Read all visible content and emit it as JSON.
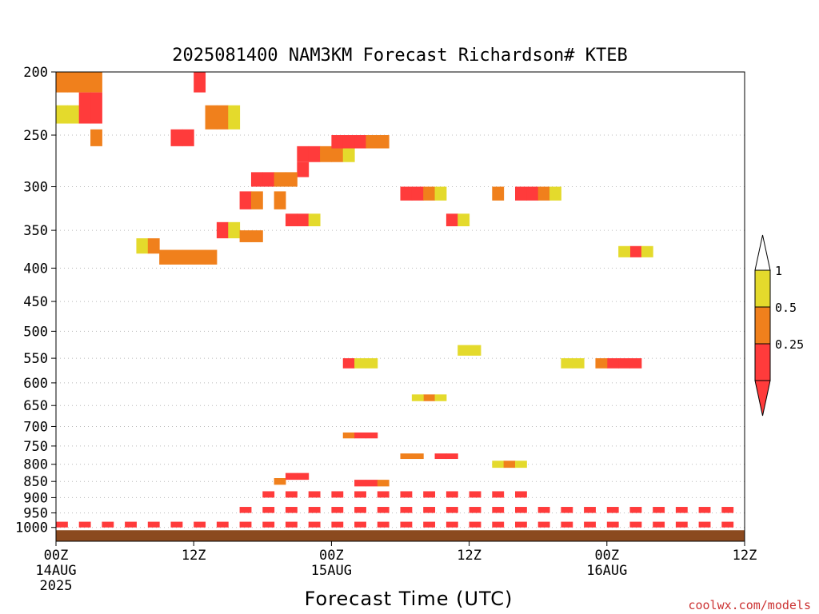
{
  "chart_data": {
    "type": "heatmap",
    "title": "2025081400 NAM3KM Forecast Richardson# KTEB",
    "xlabel": "Forecast Time (UTC)",
    "ylabel": "",
    "x_unit": "forecast hour",
    "x_range": [
      0,
      60
    ],
    "x_ticks": [
      {
        "x": 0,
        "labels": [
          "00Z",
          "14AUG",
          "2025"
        ]
      },
      {
        "x": 12,
        "labels": [
          "12Z"
        ]
      },
      {
        "x": 24,
        "labels": [
          "00Z",
          "15AUG"
        ]
      },
      {
        "x": 36,
        "labels": [
          "12Z"
        ]
      },
      {
        "x": 48,
        "labels": [
          "00Z",
          "16AUG"
        ]
      },
      {
        "x": 60,
        "labels": [
          "12Z"
        ]
      }
    ],
    "y_log_scale": true,
    "y_range": [
      1050,
      200
    ],
    "y_ticks": [
      200,
      250,
      300,
      350,
      400,
      450,
      500,
      550,
      600,
      650,
      700,
      750,
      800,
      850,
      900,
      950,
      1000
    ],
    "y_grid": true,
    "legend": {
      "placement": "right",
      "bins": [
        {
          "label": "0.25",
          "color": "#ff3b3b"
        },
        {
          "label": "0.5",
          "color": "#f0801c"
        },
        {
          "label": "1",
          "color": "#e4da2c"
        }
      ],
      "labels": [
        "1",
        "0.5",
        "0.25"
      ]
    },
    "categories": [
      {
        "name": "lt025",
        "color": "#ff3b3b"
      },
      {
        "name": "025to05",
        "color": "#f0801c"
      },
      {
        "name": "05to1",
        "color": "#e4da2c"
      }
    ],
    "cells": [
      [
        0,
        200,
        215,
        1
      ],
      [
        1,
        200,
        215,
        1
      ],
      [
        2,
        200,
        215,
        1
      ],
      [
        3,
        200,
        215,
        1
      ],
      [
        0,
        225,
        240,
        2
      ],
      [
        1,
        225,
        240,
        2
      ],
      [
        2,
        215,
        240,
        0
      ],
      [
        3,
        215,
        240,
        0
      ],
      [
        3,
        245,
        260,
        1
      ],
      [
        10,
        245,
        260,
        0
      ],
      [
        11,
        245,
        260,
        0
      ],
      [
        13,
        225,
        245,
        1
      ],
      [
        14,
        225,
        245,
        1
      ],
      [
        12,
        200,
        215,
        0
      ],
      [
        15,
        225,
        245,
        2
      ],
      [
        21,
        260,
        275,
        0
      ],
      [
        21,
        275,
        290,
        0
      ],
      [
        22,
        260,
        275,
        0
      ],
      [
        23,
        260,
        275,
        1
      ],
      [
        24,
        260,
        275,
        1
      ],
      [
        25,
        260,
        275,
        2
      ],
      [
        24,
        250,
        262,
        0
      ],
      [
        25,
        250,
        262,
        0
      ],
      [
        26,
        250,
        262,
        0
      ],
      [
        27,
        250,
        262,
        1
      ],
      [
        28,
        250,
        262,
        1
      ],
      [
        17,
        285,
        300,
        0
      ],
      [
        18,
        285,
        300,
        0
      ],
      [
        19,
        285,
        300,
        1
      ],
      [
        20,
        285,
        300,
        1
      ],
      [
        16,
        305,
        325,
        0
      ],
      [
        17,
        305,
        325,
        1
      ],
      [
        19,
        305,
        325,
        1
      ],
      [
        20,
        330,
        345,
        0
      ],
      [
        21,
        330,
        345,
        0
      ],
      [
        22,
        330,
        345,
        2
      ],
      [
        7,
        360,
        380,
        2
      ],
      [
        8,
        360,
        380,
        1
      ],
      [
        9,
        375,
        395,
        1
      ],
      [
        10,
        375,
        395,
        1
      ],
      [
        11,
        375,
        395,
        1
      ],
      [
        12,
        375,
        395,
        1
      ],
      [
        13,
        375,
        395,
        1
      ],
      [
        14,
        340,
        360,
        0
      ],
      [
        15,
        340,
        360,
        2
      ],
      [
        16,
        350,
        365,
        1
      ],
      [
        17,
        350,
        365,
        1
      ],
      [
        30,
        300,
        315,
        0
      ],
      [
        31,
        300,
        315,
        0
      ],
      [
        32,
        300,
        315,
        1
      ],
      [
        33,
        300,
        315,
        2
      ],
      [
        34,
        330,
        345,
        0
      ],
      [
        35,
        330,
        345,
        2
      ],
      [
        38,
        300,
        315,
        1
      ],
      [
        40,
        300,
        315,
        0
      ],
      [
        41,
        300,
        315,
        0
      ],
      [
        42,
        300,
        315,
        1
      ],
      [
        43,
        300,
        315,
        2
      ],
      [
        50,
        370,
        385,
        0
      ],
      [
        49,
        370,
        385,
        2
      ],
      [
        51,
        370,
        385,
        2
      ],
      [
        25,
        550,
        570,
        0
      ],
      [
        26,
        550,
        570,
        2
      ],
      [
        27,
        550,
        570,
        2
      ],
      [
        48,
        550,
        570,
        0
      ],
      [
        49,
        550,
        570,
        0
      ],
      [
        50,
        550,
        570,
        0
      ],
      [
        47,
        550,
        570,
        1
      ],
      [
        45,
        550,
        570,
        2
      ],
      [
        44,
        550,
        570,
        2
      ],
      [
        35,
        525,
        545,
        2
      ],
      [
        36,
        525,
        545,
        2
      ],
      [
        32,
        625,
        640,
        1
      ],
      [
        31,
        625,
        640,
        2
      ],
      [
        33,
        625,
        640,
        2
      ],
      [
        25,
        715,
        730,
        1
      ],
      [
        26,
        715,
        730,
        0
      ],
      [
        27,
        715,
        730,
        0
      ],
      [
        30,
        770,
        785,
        1
      ],
      [
        31,
        770,
        785,
        1
      ],
      [
        33,
        770,
        785,
        0
      ],
      [
        34,
        770,
        785,
        0
      ],
      [
        38,
        790,
        810,
        2
      ],
      [
        39,
        790,
        810,
        1
      ],
      [
        40,
        790,
        810,
        2
      ],
      [
        19,
        840,
        860,
        1
      ],
      [
        20,
        825,
        845,
        0
      ],
      [
        21,
        825,
        845,
        0
      ],
      [
        26,
        845,
        865,
        0
      ],
      [
        27,
        845,
        865,
        0
      ],
      [
        28,
        845,
        865,
        1
      ],
      [
        18,
        880,
        900,
        0
      ],
      [
        20,
        880,
        900,
        0
      ],
      [
        22,
        880,
        900,
        0
      ],
      [
        24,
        880,
        900,
        0
      ],
      [
        26,
        880,
        900,
        0
      ],
      [
        28,
        880,
        900,
        0
      ],
      [
        30,
        880,
        900,
        0
      ],
      [
        32,
        880,
        900,
        0
      ],
      [
        34,
        880,
        900,
        0
      ],
      [
        36,
        880,
        900,
        0
      ],
      [
        38,
        880,
        900,
        0
      ],
      [
        40,
        880,
        900,
        0
      ],
      [
        16,
        930,
        950,
        0
      ],
      [
        18,
        930,
        950,
        0
      ],
      [
        20,
        930,
        950,
        0
      ],
      [
        22,
        930,
        950,
        0
      ],
      [
        24,
        930,
        950,
        0
      ],
      [
        26,
        930,
        950,
        0
      ],
      [
        28,
        930,
        950,
        0
      ],
      [
        30,
        930,
        950,
        0
      ],
      [
        32,
        930,
        950,
        0
      ],
      [
        34,
        930,
        950,
        0
      ],
      [
        36,
        930,
        950,
        0
      ],
      [
        38,
        930,
        950,
        0
      ],
      [
        40,
        930,
        950,
        0
      ],
      [
        42,
        930,
        950,
        0
      ],
      [
        44,
        930,
        950,
        0
      ],
      [
        46,
        930,
        950,
        0
      ],
      [
        48,
        930,
        950,
        0
      ],
      [
        50,
        930,
        950,
        0
      ],
      [
        52,
        930,
        950,
        0
      ],
      [
        54,
        930,
        950,
        0
      ],
      [
        56,
        930,
        950,
        0
      ],
      [
        58,
        930,
        950,
        0
      ],
      [
        0,
        980,
        1000,
        0
      ],
      [
        2,
        980,
        1000,
        0
      ],
      [
        4,
        980,
        1000,
        0
      ],
      [
        6,
        980,
        1000,
        0
      ],
      [
        8,
        980,
        1000,
        0
      ],
      [
        10,
        980,
        1000,
        0
      ],
      [
        12,
        980,
        1000,
        0
      ],
      [
        14,
        980,
        1000,
        0
      ],
      [
        16,
        980,
        1000,
        0
      ],
      [
        18,
        980,
        1000,
        0
      ],
      [
        20,
        980,
        1000,
        0
      ],
      [
        22,
        980,
        1000,
        0
      ],
      [
        24,
        980,
        1000,
        0
      ],
      [
        26,
        980,
        1000,
        0
      ],
      [
        28,
        980,
        1000,
        0
      ],
      [
        30,
        980,
        1000,
        0
      ],
      [
        32,
        980,
        1000,
        0
      ],
      [
        34,
        980,
        1000,
        0
      ],
      [
        36,
        980,
        1000,
        0
      ],
      [
        38,
        980,
        1000,
        0
      ],
      [
        40,
        980,
        1000,
        0
      ],
      [
        42,
        980,
        1000,
        0
      ],
      [
        44,
        980,
        1000,
        0
      ],
      [
        46,
        980,
        1000,
        0
      ],
      [
        48,
        980,
        1000,
        0
      ],
      [
        50,
        980,
        1000,
        0
      ],
      [
        52,
        980,
        1000,
        0
      ],
      [
        54,
        980,
        1000,
        0
      ],
      [
        56,
        980,
        1000,
        0
      ],
      [
        58,
        980,
        1000,
        0
      ]
    ],
    "surface": {
      "color": "#8b4a1f",
      "p_top": 1010,
      "p_bottom": 1050
    }
  },
  "credit": "coolwx.com/models"
}
